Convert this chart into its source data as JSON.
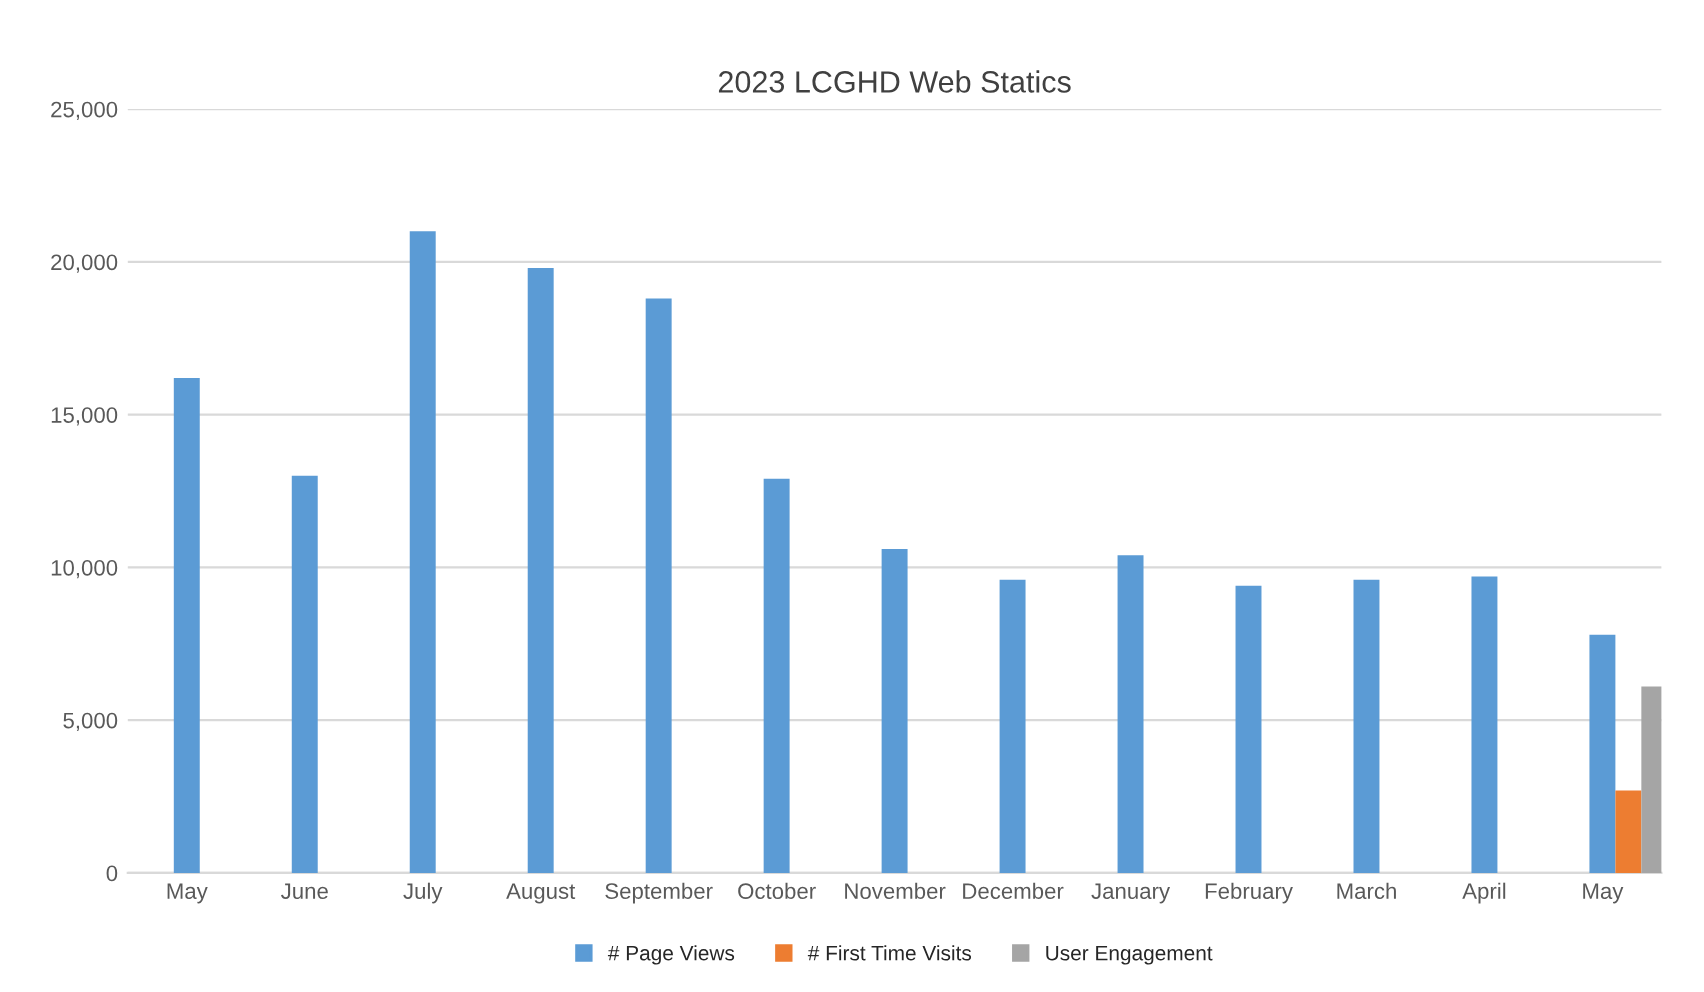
{
  "chart_data": {
    "type": "bar",
    "title": "2023 LCGHD Web Statics",
    "categories": [
      "May",
      "June",
      "July",
      "August",
      "September",
      "October",
      "November",
      "December",
      "January",
      "February",
      "March",
      "April",
      "May"
    ],
    "series": [
      {
        "name": "# Page Views",
        "color": "#5b9bd5",
        "values": [
          16200,
          13000,
          21000,
          19800,
          18800,
          12900,
          10600,
          9600,
          10400,
          9400,
          9600,
          9700,
          7800
        ]
      },
      {
        "name": "# First Time Visits",
        "color": "#ed7d31",
        "values": [
          null,
          null,
          null,
          null,
          null,
          null,
          null,
          null,
          null,
          null,
          null,
          null,
          2700
        ]
      },
      {
        "name": "User Engagement",
        "color": "#a5a5a5",
        "values": [
          null,
          null,
          null,
          null,
          null,
          null,
          null,
          null,
          null,
          null,
          null,
          null,
          6100
        ]
      }
    ],
    "ylim": [
      0,
      25000
    ],
    "yticks": [
      {
        "value": 0,
        "label": "0"
      },
      {
        "value": 5000,
        "label": "5,000"
      },
      {
        "value": 10000,
        "label": "10,000"
      },
      {
        "value": 15000,
        "label": "15,000"
      },
      {
        "value": 20000,
        "label": "20,000"
      },
      {
        "value": 25000,
        "label": "25,000"
      }
    ],
    "grid": "y",
    "legend": "bottom"
  }
}
